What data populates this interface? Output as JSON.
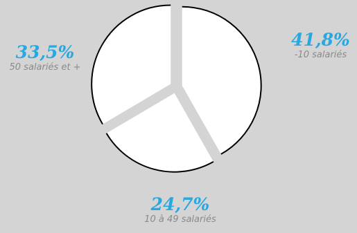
{
  "chart_data": {
    "type": "pie",
    "slices": [
      {
        "label": "-10 salariés",
        "value_label": "41,8%",
        "value": 41.8
      },
      {
        "label": "10 à 49 salariés",
        "value_label": "24,7%",
        "value": 24.7
      },
      {
        "label": "50 salariés et +",
        "value_label": "33,5%",
        "value": 33.5
      }
    ],
    "colors": {
      "background": "#d4d4d4",
      "slice_fill": "#ffffff",
      "slice_outline": "#000000",
      "percent_text": "#29a8e0",
      "label_text": "#8a8a8a"
    }
  }
}
